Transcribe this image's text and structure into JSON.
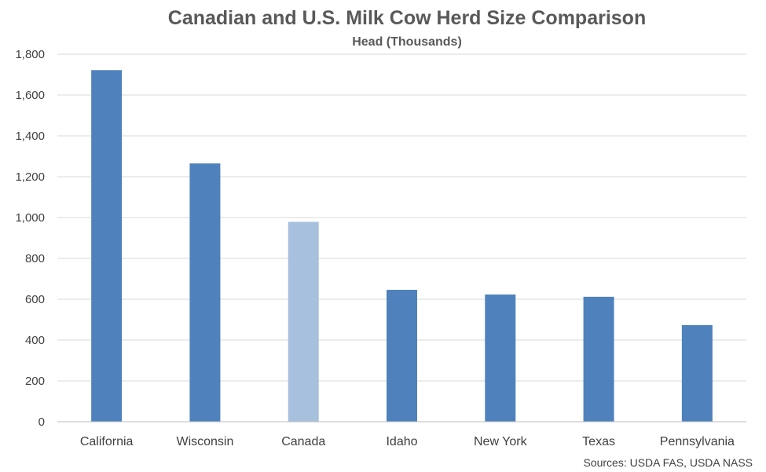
{
  "chart_data": {
    "type": "bar",
    "title": "Canadian and U.S. Milk Cow Herd Size Comparison",
    "subtitle": "Head (Thousands)",
    "xlabel": "",
    "ylabel": "",
    "categories": [
      "California",
      "Wisconsin",
      "Canada",
      "Idaho",
      "New York",
      "Texas",
      "Pennsylvania"
    ],
    "values": [
      1722,
      1265,
      979,
      646,
      623,
      612,
      473
    ],
    "highlight_index": 2,
    "ylim": [
      0,
      1800
    ],
    "yticks": [
      0,
      200,
      400,
      600,
      800,
      1000,
      1200,
      1400,
      1600,
      1800
    ],
    "ytick_labels": [
      "0",
      "200",
      "400",
      "600",
      "800",
      "1,000",
      "1,200",
      "1,400",
      "1,600",
      "1,800"
    ],
    "grid": true,
    "legend": "none",
    "source_note": "Sources: USDA FAS, USDA NASS",
    "colors": {
      "bar": "#4f81bd",
      "highlight_bar": "#a7c0de",
      "grid": "#d9d9d9",
      "axis": "#bfbfbf",
      "title": "#595959",
      "tick_text": "#404040"
    }
  }
}
